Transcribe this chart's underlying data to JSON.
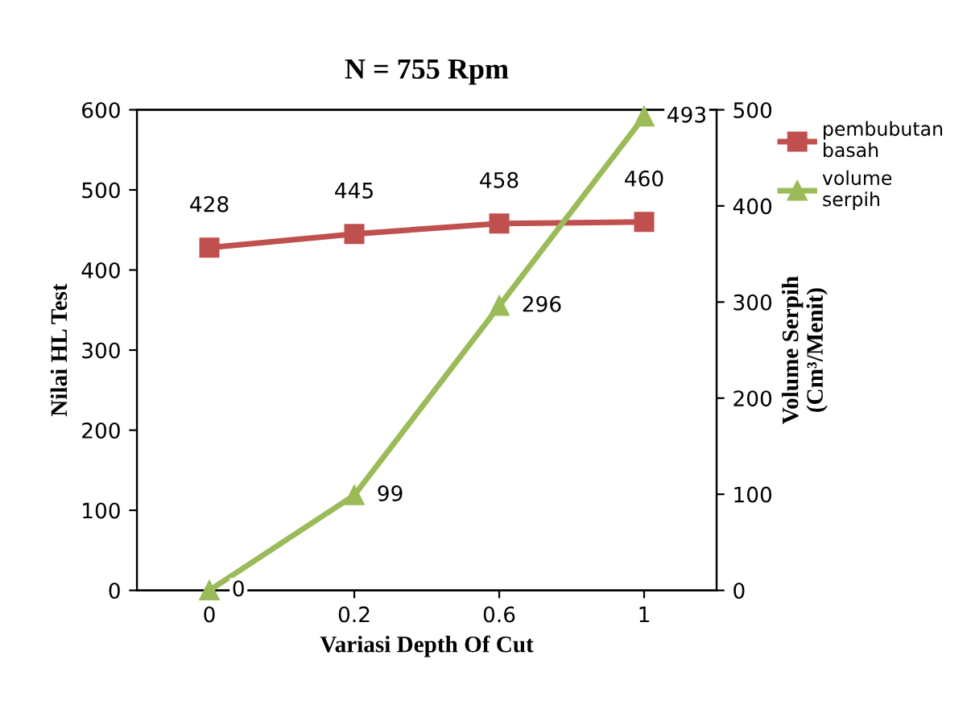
{
  "chart_data": {
    "type": "line",
    "title": "N = 755 Rpm",
    "xlabel": "Variasi Depth Of Cut",
    "ylabel": "Nilai HL Test",
    "y2label": "Volume Serpih\n(Cm³/Menit)",
    "categories": [
      "0",
      "0.2",
      "0.6",
      "1"
    ],
    "series": [
      {
        "name": "pembubutan basah",
        "color": "#c0504d",
        "values": [
          428,
          445,
          458,
          460
        ],
        "marker": "square"
      },
      {
        "name": "volume serpih",
        "color": "#9bbb59",
        "values": [
          0,
          99,
          296,
          493
        ],
        "marker": "triangle",
        "axis": "y2"
      }
    ],
    "ylim": [
      0,
      600
    ],
    "yticks": [
      0,
      100,
      200,
      300,
      400,
      500,
      600
    ],
    "y2lim": [
      0,
      500
    ],
    "y2ticks": [
      0,
      100,
      200,
      300,
      400,
      500
    ],
    "data_labels": true,
    "legend": "right",
    "grid": false,
    "line_style": "solid"
  }
}
